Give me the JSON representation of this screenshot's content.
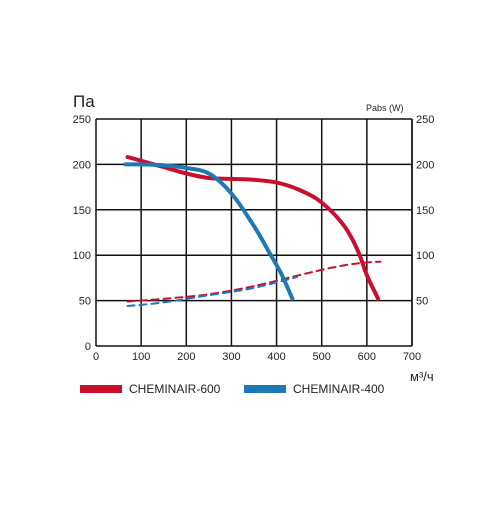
{
  "chart_data": {
    "type": "line",
    "y_left_label": "Па",
    "y_right_label": "Pabs (W)",
    "x_label": "м³/ч",
    "xlim": [
      0,
      700
    ],
    "ylim": [
      0,
      250
    ],
    "y2lim": [
      0,
      250
    ],
    "x_ticks": [
      "0",
      "100",
      "200",
      "300",
      "400",
      "500",
      "600",
      "700"
    ],
    "y_ticks": [
      "0",
      "50",
      "100",
      "150",
      "200",
      "250"
    ],
    "y2_ticks": [
      "50",
      "100",
      "150",
      "200",
      "250"
    ],
    "grid": true,
    "legend_placement": "bottom",
    "series": [
      {
        "name": "CHEMINAIR-600",
        "color": "#c8102e",
        "pressure": [
          [
            70,
            208
          ],
          [
            100,
            204
          ],
          [
            150,
            197
          ],
          [
            200,
            190
          ],
          [
            250,
            185
          ],
          [
            300,
            184
          ],
          [
            350,
            183
          ],
          [
            400,
            180
          ],
          [
            450,
            172
          ],
          [
            500,
            158
          ],
          [
            550,
            132
          ],
          [
            580,
            105
          ],
          [
            600,
            78
          ],
          [
            625,
            52
          ]
        ],
        "power": [
          [
            70,
            49
          ],
          [
            150,
            52
          ],
          [
            250,
            57
          ],
          [
            350,
            66
          ],
          [
            450,
            78
          ],
          [
            520,
            86
          ],
          [
            580,
            91
          ],
          [
            630,
            93
          ]
        ]
      },
      {
        "name": "CHEMINAIR-400",
        "color": "#1f78b4",
        "pressure": [
          [
            65,
            200
          ],
          [
            100,
            200
          ],
          [
            150,
            199
          ],
          [
            200,
            196
          ],
          [
            250,
            190
          ],
          [
            300,
            168
          ],
          [
            350,
            132
          ],
          [
            385,
            102
          ],
          [
            410,
            80
          ],
          [
            435,
            52
          ]
        ],
        "power": [
          [
            70,
            44
          ],
          [
            150,
            48
          ],
          [
            250,
            56
          ],
          [
            330,
            62
          ],
          [
            400,
            70
          ],
          [
            445,
            76
          ]
        ]
      }
    ]
  }
}
